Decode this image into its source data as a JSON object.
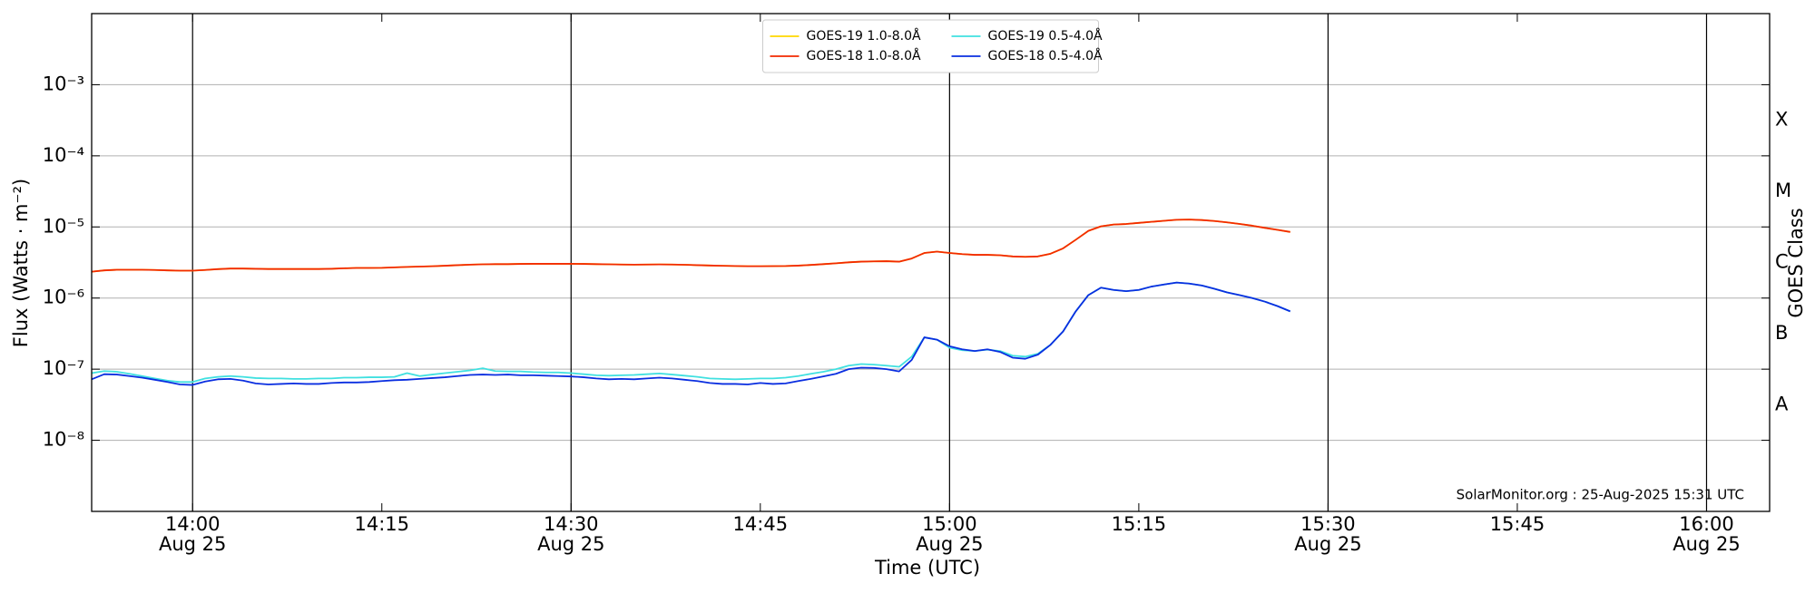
{
  "chart_data": {
    "type": "line",
    "ylabel": "Flux (Watts · m⁻²)",
    "xlabel": "Time (UTC)",
    "y2label": "GOES Class",
    "annotation": "SolarMonitor.org : 25-Aug-2025 15:31 UTC",
    "yscale": "log",
    "grid": true,
    "legend": "upper center",
    "xlim": [
      "13:52",
      "16:05"
    ],
    "ylim": [
      1e-09,
      0.01
    ],
    "y2lim": [
      1e-09,
      0.01
    ],
    "xticks": [
      {
        "value": "14:00",
        "label": [
          "14:00",
          "Aug 25"
        ]
      },
      {
        "value": "14:15",
        "label": [
          "14:15"
        ]
      },
      {
        "value": "14:30",
        "label": [
          "14:30",
          "Aug 25"
        ]
      },
      {
        "value": "14:45",
        "label": [
          "14:45"
        ]
      },
      {
        "value": "15:00",
        "label": [
          "15:00",
          "Aug 25"
        ]
      },
      {
        "value": "15:15",
        "label": [
          "15:15"
        ]
      },
      {
        "value": "15:30",
        "label": [
          "15:30",
          "Aug 25"
        ]
      },
      {
        "value": "15:45",
        "label": [
          "15:45"
        ]
      },
      {
        "value": "16:00",
        "label": [
          "16:00",
          "Aug 25"
        ]
      }
    ],
    "yticks": [
      {
        "value": 0.001,
        "label": "10⁻³"
      },
      {
        "value": 0.0001,
        "label": "10⁻⁴"
      },
      {
        "value": 1e-05,
        "label": "10⁻⁵"
      },
      {
        "value": 1e-06,
        "label": "10⁻⁶"
      },
      {
        "value": 1e-07,
        "label": "10⁻⁷"
      },
      {
        "value": 1e-08,
        "label": "10⁻⁸"
      }
    ],
    "y2ticks": [
      {
        "value": 3.162e-08,
        "label": "A"
      },
      {
        "value": 3.162e-07,
        "label": "B"
      },
      {
        "value": 3.162e-06,
        "label": "C"
      },
      {
        "value": 3.162e-05,
        "label": "M"
      },
      {
        "value": 0.0003162,
        "label": "X"
      }
    ],
    "x": [
      "13:52",
      "13:53",
      "13:54",
      "13:55",
      "13:56",
      "13:57",
      "13:58",
      "13:59",
      "14:00",
      "14:01",
      "14:02",
      "14:03",
      "14:04",
      "14:05",
      "14:06",
      "14:07",
      "14:08",
      "14:09",
      "14:10",
      "14:11",
      "14:12",
      "14:13",
      "14:14",
      "14:15",
      "14:16",
      "14:17",
      "14:18",
      "14:19",
      "14:20",
      "14:21",
      "14:22",
      "14:23",
      "14:24",
      "14:25",
      "14:26",
      "14:27",
      "14:28",
      "14:29",
      "14:30",
      "14:31",
      "14:32",
      "14:33",
      "14:34",
      "14:35",
      "14:36",
      "14:37",
      "14:38",
      "14:39",
      "14:40",
      "14:41",
      "14:42",
      "14:43",
      "14:44",
      "14:45",
      "14:46",
      "14:47",
      "14:48",
      "14:49",
      "14:50",
      "14:51",
      "14:52",
      "14:53",
      "14:54",
      "14:55",
      "14:56",
      "14:57",
      "14:58",
      "14:59",
      "15:00",
      "15:01",
      "15:02",
      "15:03",
      "15:04",
      "15:05",
      "15:06",
      "15:07",
      "15:08",
      "15:09",
      "15:10",
      "15:11",
      "15:12",
      "15:13",
      "15:14",
      "15:15",
      "15:16",
      "15:17",
      "15:18",
      "15:19",
      "15:20",
      "15:21",
      "15:22",
      "15:23",
      "15:24",
      "15:25",
      "15:26",
      "15:27"
    ],
    "series": [
      {
        "name": "GOES-19 1.0-8.0Å",
        "color": "#ffd700",
        "values": [
          2.35e-06,
          2.45e-06,
          2.5e-06,
          2.5e-06,
          2.5e-06,
          2.48e-06,
          2.45e-06,
          2.43e-06,
          2.43e-06,
          2.48e-06,
          2.55e-06,
          2.6e-06,
          2.6e-06,
          2.58e-06,
          2.56e-06,
          2.56e-06,
          2.56e-06,
          2.56e-06,
          2.56e-06,
          2.58e-06,
          2.62e-06,
          2.65e-06,
          2.65e-06,
          2.66e-06,
          2.7e-06,
          2.74e-06,
          2.77e-06,
          2.8e-06,
          2.85e-06,
          2.9e-06,
          2.95e-06,
          2.98e-06,
          3e-06,
          3e-06,
          3.02e-06,
          3.03e-06,
          3.03e-06,
          3.03e-06,
          3.03e-06,
          3.02e-06,
          3e-06,
          2.98e-06,
          2.96e-06,
          2.95e-06,
          2.96e-06,
          2.97e-06,
          2.96e-06,
          2.94e-06,
          2.9e-06,
          2.87e-06,
          2.84e-06,
          2.82e-06,
          2.8e-06,
          2.8e-06,
          2.81e-06,
          2.82e-06,
          2.86e-06,
          2.92e-06,
          3e-06,
          3.08e-06,
          3.18e-06,
          3.25e-06,
          3.28e-06,
          3.3e-06,
          3.25e-06,
          3.6e-06,
          4.3e-06,
          4.5e-06,
          4.3e-06,
          4.15e-06,
          4.05e-06,
          4.05e-06,
          4e-06,
          3.85e-06,
          3.8e-06,
          3.85e-06,
          4.2e-06,
          5e-06,
          6.6e-06,
          8.8e-06,
          1.02e-05,
          1.08e-05,
          1.1e-05,
          1.14e-05,
          1.18e-05,
          1.22e-05,
          1.26e-05,
          1.27e-05,
          1.25e-05,
          1.21e-05,
          1.16e-05,
          1.1e-05,
          1.04e-05,
          9.7e-06,
          9.1e-06,
          8.5e-06
        ]
      },
      {
        "name": "GOES-18 1.0-8.0Å",
        "color": "#f22a00",
        "values": [
          2.35e-06,
          2.45e-06,
          2.5e-06,
          2.5e-06,
          2.5e-06,
          2.48e-06,
          2.45e-06,
          2.43e-06,
          2.43e-06,
          2.48e-06,
          2.55e-06,
          2.6e-06,
          2.6e-06,
          2.58e-06,
          2.56e-06,
          2.56e-06,
          2.56e-06,
          2.56e-06,
          2.56e-06,
          2.58e-06,
          2.62e-06,
          2.65e-06,
          2.65e-06,
          2.66e-06,
          2.7e-06,
          2.74e-06,
          2.77e-06,
          2.8e-06,
          2.85e-06,
          2.9e-06,
          2.95e-06,
          2.98e-06,
          3e-06,
          3e-06,
          3.02e-06,
          3.03e-06,
          3.03e-06,
          3.03e-06,
          3.03e-06,
          3.02e-06,
          3e-06,
          2.98e-06,
          2.96e-06,
          2.95e-06,
          2.96e-06,
          2.97e-06,
          2.96e-06,
          2.94e-06,
          2.9e-06,
          2.87e-06,
          2.84e-06,
          2.82e-06,
          2.8e-06,
          2.8e-06,
          2.81e-06,
          2.82e-06,
          2.86e-06,
          2.92e-06,
          3e-06,
          3.08e-06,
          3.18e-06,
          3.25e-06,
          3.28e-06,
          3.3e-06,
          3.25e-06,
          3.6e-06,
          4.3e-06,
          4.5e-06,
          4.3e-06,
          4.15e-06,
          4.05e-06,
          4.05e-06,
          4e-06,
          3.85e-06,
          3.8e-06,
          3.85e-06,
          4.2e-06,
          5e-06,
          6.6e-06,
          8.8e-06,
          1.02e-05,
          1.08e-05,
          1.1e-05,
          1.14e-05,
          1.18e-05,
          1.22e-05,
          1.26e-05,
          1.27e-05,
          1.25e-05,
          1.21e-05,
          1.16e-05,
          1.1e-05,
          1.04e-05,
          9.7e-06,
          9.1e-06,
          8.5e-06
        ]
      },
      {
        "name": "GOES-19 0.5-4.0Å",
        "color": "#40e0e0",
        "values": [
          8.8e-08,
          9.4e-08,
          9.2e-08,
          8.6e-08,
          8e-08,
          7.4e-08,
          6.9e-08,
          6.6e-08,
          6.6e-08,
          7.4e-08,
          7.8e-08,
          8e-08,
          7.8e-08,
          7.5e-08,
          7.4e-08,
          7.4e-08,
          7.3e-08,
          7.3e-08,
          7.4e-08,
          7.4e-08,
          7.6e-08,
          7.6e-08,
          7.7e-08,
          7.7e-08,
          7.8e-08,
          8.8e-08,
          8e-08,
          8.4e-08,
          8.8e-08,
          9.2e-08,
          9.6e-08,
          1.03e-07,
          9.4e-08,
          9.3e-08,
          9.3e-08,
          9.1e-08,
          9e-08,
          9e-08,
          8.8e-08,
          8.5e-08,
          8.2e-08,
          8.1e-08,
          8.2e-08,
          8.3e-08,
          8.5e-08,
          8.7e-08,
          8.4e-08,
          8.1e-08,
          7.8e-08,
          7.4e-08,
          7.3e-08,
          7.2e-08,
          7.3e-08,
          7.4e-08,
          7.4e-08,
          7.6e-08,
          8e-08,
          8.6e-08,
          9.2e-08,
          1e-07,
          1.12e-07,
          1.18e-07,
          1.16e-07,
          1.12e-07,
          1.08e-07,
          1.5e-07,
          2.8e-07,
          2.6e-07,
          2e-07,
          1.85e-07,
          1.8e-07,
          1.88e-07,
          1.8e-07,
          1.55e-07,
          1.5e-07,
          1.65e-07,
          2.2e-07,
          3.4e-07,
          6.5e-07,
          1.1e-06,
          1.4e-06,
          1.3e-06,
          1.25e-06,
          1.3e-06,
          1.45e-06,
          1.55e-06,
          1.65e-06,
          1.6e-06,
          1.5e-06,
          1.35e-06,
          1.2e-06,
          1.1e-06,
          1e-06,
          8.9e-07,
          7.7e-07,
          6.5e-07
        ]
      },
      {
        "name": "GOES-18 0.5-4.0Å",
        "color": "#0a2ee0",
        "values": [
          7.2e-08,
          8.5e-08,
          8.4e-08,
          8e-08,
          7.6e-08,
          7.1e-08,
          6.6e-08,
          6.1e-08,
          6e-08,
          6.7e-08,
          7.2e-08,
          7.3e-08,
          6.9e-08,
          6.3e-08,
          6.1e-08,
          6.2e-08,
          6.3e-08,
          6.2e-08,
          6.2e-08,
          6.4e-08,
          6.5e-08,
          6.5e-08,
          6.6e-08,
          6.8e-08,
          7e-08,
          7.1e-08,
          7.3e-08,
          7.5e-08,
          7.7e-08,
          8e-08,
          8.3e-08,
          8.4e-08,
          8.3e-08,
          8.4e-08,
          8.2e-08,
          8.2e-08,
          8.1e-08,
          8e-08,
          7.9e-08,
          7.7e-08,
          7.4e-08,
          7.2e-08,
          7.3e-08,
          7.2e-08,
          7.4e-08,
          7.6e-08,
          7.4e-08,
          7.1e-08,
          6.8e-08,
          6.4e-08,
          6.2e-08,
          6.2e-08,
          6.1e-08,
          6.4e-08,
          6.2e-08,
          6.3e-08,
          6.8e-08,
          7.3e-08,
          7.9e-08,
          8.6e-08,
          1e-07,
          1.05e-07,
          1.04e-07,
          1e-07,
          9.3e-08,
          1.35e-07,
          2.8e-07,
          2.6e-07,
          2.1e-07,
          1.9e-07,
          1.8e-07,
          1.9e-07,
          1.75e-07,
          1.45e-07,
          1.4e-07,
          1.6e-07,
          2.2e-07,
          3.4e-07,
          6.5e-07,
          1.1e-06,
          1.4e-06,
          1.3e-06,
          1.25e-06,
          1.3e-06,
          1.45e-06,
          1.55e-06,
          1.65e-06,
          1.6e-06,
          1.5e-06,
          1.35e-06,
          1.2e-06,
          1.1e-06,
          1e-06,
          8.9e-07,
          7.7e-07,
          6.5e-07
        ]
      }
    ]
  }
}
